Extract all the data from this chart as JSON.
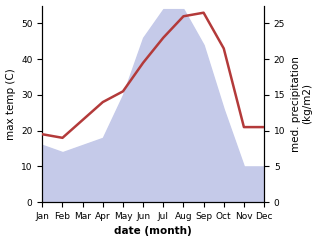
{
  "months": [
    "Jan",
    "Feb",
    "Mar",
    "Apr",
    "May",
    "Jun",
    "Jul",
    "Aug",
    "Sep",
    "Oct",
    "Nov",
    "Dec"
  ],
  "month_indices": [
    0,
    1,
    2,
    3,
    4,
    5,
    6,
    7,
    8,
    9,
    10,
    11
  ],
  "temp": [
    19,
    18,
    23,
    28,
    31,
    39,
    46,
    52,
    53,
    43,
    21,
    21
  ],
  "precip": [
    8,
    7,
    8,
    9,
    15,
    23,
    27,
    27,
    22,
    13,
    5,
    5
  ],
  "temp_color": "#b33a3a",
  "precip_fill_color": "#c5cae9",
  "temp_ylim": [
    0,
    55
  ],
  "precip_ylim": [
    0,
    27.5
  ],
  "temp_yticks": [
    0,
    10,
    20,
    30,
    40,
    50
  ],
  "precip_yticks": [
    0,
    5,
    10,
    15,
    20,
    25
  ],
  "xlabel": "date (month)",
  "ylabel_left": "max temp (C)",
  "ylabel_right": "med. precipitation\n(kg/m2)",
  "background_color": "#ffffff",
  "temp_linewidth": 1.8,
  "label_fontsize": 7.5,
  "tick_fontsize": 6.5
}
